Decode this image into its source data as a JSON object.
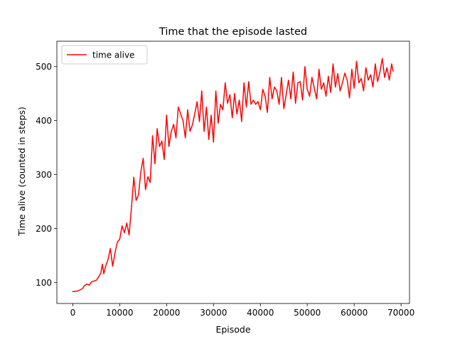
{
  "chart_data": {
    "type": "line",
    "title": "Time that the episode lasted",
    "xlabel": "Episode",
    "ylabel": "Time alive (counted in steps)",
    "xlim": [
      -3400,
      71800
    ],
    "ylim": [
      61,
      547
    ],
    "xticks": [
      0,
      10000,
      20000,
      30000,
      40000,
      50000,
      60000,
      70000
    ],
    "yticks": [
      100,
      200,
      300,
      400,
      500
    ],
    "grid": false,
    "legend": {
      "placement": "top-left"
    },
    "series": [
      {
        "name": "time alive",
        "color": "#ff0000",
        "x": [
          0,
          1000,
          2000,
          2500,
          3000,
          3500,
          4000,
          5000,
          5500,
          6000,
          6300,
          6600,
          7000,
          7500,
          8000,
          8500,
          9000,
          9500,
          10000,
          10500,
          11000,
          11500,
          12000,
          12500,
          13000,
          13500,
          14000,
          14500,
          15000,
          15500,
          16000,
          16500,
          17000,
          17500,
          18000,
          18500,
          19000,
          19500,
          20000,
          20500,
          21000,
          21500,
          22000,
          22500,
          23000,
          23500,
          24000,
          24500,
          25000,
          25500,
          26000,
          26500,
          27000,
          27500,
          28000,
          28500,
          29000,
          29500,
          30000,
          30500,
          31000,
          31500,
          32000,
          32500,
          33000,
          33500,
          34000,
          34500,
          35000,
          35500,
          36000,
          36500,
          37000,
          37500,
          38000,
          38500,
          39000,
          39500,
          40000,
          40500,
          41000,
          41500,
          42000,
          42500,
          43000,
          43500,
          44000,
          44500,
          45000,
          45500,
          46000,
          46500,
          47000,
          47500,
          48000,
          48500,
          49000,
          49500,
          50000,
          50500,
          51000,
          51500,
          52000,
          52500,
          53000,
          53500,
          54000,
          54500,
          55000,
          55500,
          56000,
          56500,
          57000,
          57500,
          58000,
          58500,
          59000,
          59500,
          60000,
          60500,
          61000,
          61500,
          62000,
          62500,
          63000,
          63500,
          64000,
          64500,
          65000,
          65500,
          66000,
          66500,
          67000,
          67500,
          68000,
          68300
        ],
        "values": [
          83,
          84,
          88,
          94,
          97,
          95,
          101,
          104,
          110,
          118,
          134,
          116,
          130,
          142,
          163,
          130,
          155,
          175,
          180,
          205,
          192,
          210,
          188,
          238,
          295,
          252,
          262,
          305,
          330,
          272,
          296,
          285,
          372,
          320,
          385,
          352,
          362,
          328,
          410,
          352,
          380,
          393,
          368,
          425,
          412,
          400,
          368,
          420,
          380,
          392,
          412,
          435,
          398,
          455,
          380,
          425,
          365,
          410,
          360,
          455,
          395,
          430,
          420,
          470,
          432,
          448,
          405,
          450,
          412,
          438,
          398,
          470,
          425,
          472,
          430,
          438,
          430,
          435,
          420,
          458,
          445,
          415,
          480,
          440,
          462,
          455,
          430,
          480,
          422,
          448,
          475,
          440,
          490,
          432,
          470,
          472,
          438,
          500,
          458,
          445,
          480,
          460,
          440,
          495,
          458,
          470,
          445,
          482,
          452,
          505,
          462,
          487,
          455,
          470,
          488,
          475,
          442,
          495,
          460,
          510,
          470,
          478,
          455,
          498,
          475,
          485,
          462,
          505,
          472,
          490,
          515,
          480,
          498,
          475,
          505,
          492
        ]
      }
    ]
  }
}
